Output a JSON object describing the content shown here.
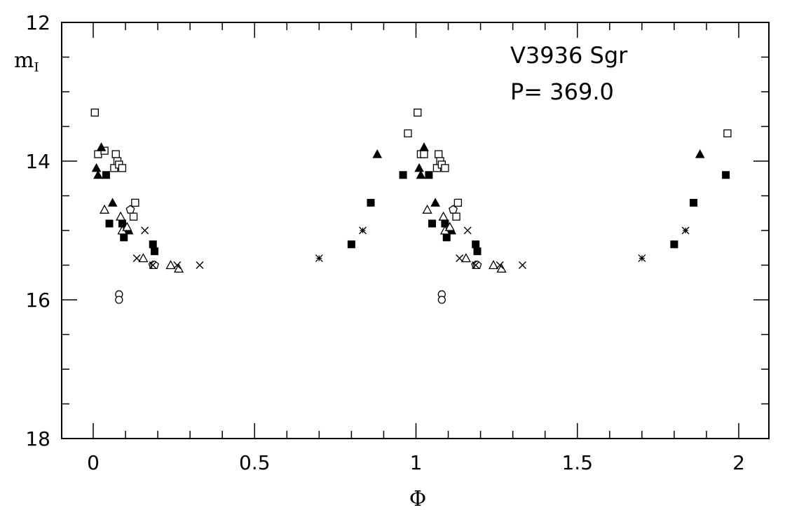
{
  "chart_data": {
    "type": "scatter",
    "title": "",
    "annotations": [
      "V3936 Sgr",
      "P= 369.0"
    ],
    "xlabel": "Φ",
    "ylabel": "m",
    "ylabel_sub": "I",
    "xlim": [
      -0.1,
      2.1
    ],
    "ylim": [
      12,
      18
    ],
    "y_inverted": true,
    "xticks": [
      {
        "v": 0,
        "label": "0"
      },
      {
        "v": 0.5,
        "label": "0.5"
      },
      {
        "v": 1,
        "label": "1"
      },
      {
        "v": 1.5,
        "label": "1.5"
      },
      {
        "v": 2,
        "label": "2"
      }
    ],
    "yticks": [
      {
        "v": 12,
        "label": "12"
      },
      {
        "v": 14,
        "label": "14"
      },
      {
        "v": 16,
        "label": "16"
      },
      {
        "v": 18,
        "label": "18"
      }
    ],
    "grid": false,
    "series": [
      {
        "marker": "open-square",
        "points": [
          [
            0.005,
            13.3
          ],
          [
            0.015,
            13.9
          ],
          [
            0.035,
            13.85
          ],
          [
            0.065,
            14.1
          ],
          [
            0.07,
            13.9
          ],
          [
            0.075,
            14.0
          ],
          [
            0.08,
            14.05
          ],
          [
            0.09,
            14.1
          ],
          [
            0.125,
            14.8
          ],
          [
            0.13,
            14.6
          ],
          [
            0.975,
            13.6
          ],
          [
            1.005,
            13.3
          ],
          [
            1.015,
            13.9
          ],
          [
            1.025,
            13.9
          ],
          [
            1.065,
            14.1
          ],
          [
            1.07,
            13.9
          ],
          [
            1.075,
            14.0
          ],
          [
            1.08,
            14.05
          ],
          [
            1.09,
            14.1
          ],
          [
            1.125,
            14.8
          ],
          [
            1.13,
            14.6
          ],
          [
            1.965,
            13.6
          ]
        ]
      },
      {
        "marker": "filled-triangle",
        "points": [
          [
            0.01,
            14.1
          ],
          [
            0.015,
            14.2
          ],
          [
            0.025,
            13.8
          ],
          [
            0.06,
            14.6
          ],
          [
            0.11,
            15.0
          ],
          [
            0.88,
            13.9
          ],
          [
            1.01,
            14.1
          ],
          [
            1.015,
            14.2
          ],
          [
            1.025,
            13.8
          ],
          [
            1.06,
            14.6
          ],
          [
            1.11,
            15.0
          ],
          [
            1.88,
            13.9
          ]
        ]
      },
      {
        "marker": "filled-square",
        "points": [
          [
            0.04,
            14.2
          ],
          [
            0.05,
            14.9
          ],
          [
            0.09,
            14.9
          ],
          [
            0.095,
            15.1
          ],
          [
            0.185,
            15.2
          ],
          [
            0.19,
            15.3
          ],
          [
            0.8,
            15.2
          ],
          [
            0.86,
            14.6
          ],
          [
            0.96,
            14.2
          ],
          [
            1.04,
            14.2
          ],
          [
            1.05,
            14.9
          ],
          [
            1.09,
            14.9
          ],
          [
            1.095,
            15.1
          ],
          [
            1.185,
            15.2
          ],
          [
            1.19,
            15.3
          ],
          [
            1.8,
            15.2
          ],
          [
            1.86,
            14.6
          ],
          [
            1.96,
            14.2
          ]
        ]
      },
      {
        "marker": "open-triangle",
        "points": [
          [
            0.035,
            14.7
          ],
          [
            0.085,
            14.8
          ],
          [
            0.09,
            15.0
          ],
          [
            0.105,
            14.95
          ],
          [
            0.155,
            15.4
          ],
          [
            0.24,
            15.5
          ],
          [
            0.265,
            15.55
          ],
          [
            1.035,
            14.7
          ],
          [
            1.085,
            14.8
          ],
          [
            1.09,
            15.0
          ],
          [
            1.105,
            14.95
          ],
          [
            1.155,
            15.4
          ],
          [
            1.24,
            15.5
          ],
          [
            1.265,
            15.55
          ]
        ]
      },
      {
        "marker": "open-circle",
        "points": [
          [
            0.08,
            15.92
          ],
          [
            0.08,
            16.0
          ],
          [
            1.08,
            15.92
          ],
          [
            1.08,
            16.0
          ]
        ]
      },
      {
        "marker": "open-pentagon",
        "points": [
          [
            0.115,
            14.7
          ],
          [
            0.185,
            15.5
          ],
          [
            0.19,
            15.5
          ],
          [
            1.115,
            14.7
          ],
          [
            1.185,
            15.5
          ],
          [
            1.19,
            15.5
          ]
        ]
      },
      {
        "marker": "cross",
        "points": [
          [
            0.16,
            15.0
          ],
          [
            0.185,
            15.5
          ],
          [
            0.26,
            15.5
          ],
          [
            0.33,
            15.5
          ],
          [
            1.16,
            15.0
          ],
          [
            1.185,
            15.5
          ],
          [
            1.26,
            15.5
          ],
          [
            1.33,
            15.5
          ],
          [
            0.135,
            15.4
          ],
          [
            1.135,
            15.4
          ]
        ]
      },
      {
        "marker": "star",
        "points": [
          [
            0.7,
            15.4
          ],
          [
            0.835,
            15.0
          ],
          [
            1.7,
            15.4
          ],
          [
            1.835,
            15.0
          ]
        ]
      }
    ]
  }
}
